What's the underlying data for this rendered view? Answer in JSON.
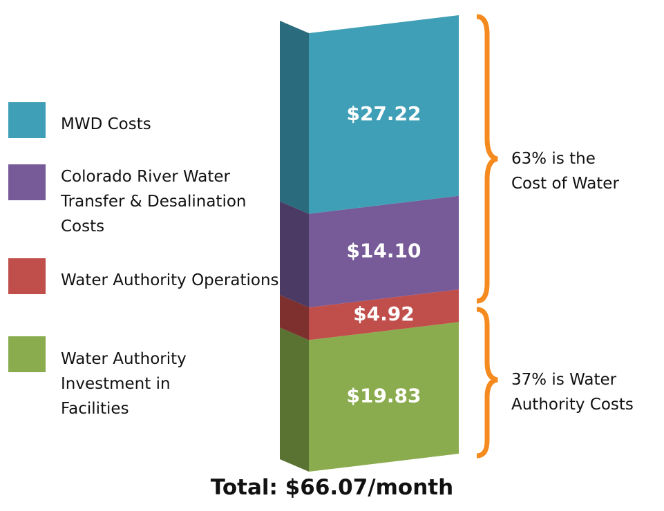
{
  "chart_data": {
    "type": "stacked-bar-3d",
    "title": "Total: $66.07/month",
    "series": [
      {
        "name": "MWD Costs",
        "color": "#3f9fb6",
        "side_color": "#2a6b7d",
        "values": [
          27.22
        ],
        "value_labels": [
          "$27.22"
        ]
      },
      {
        "name": "Colorado River Water Transfer & Desalination Costs",
        "color": "#765b98",
        "side_color": "#4b3a63",
        "values": [
          14.1
        ],
        "value_labels": [
          "$14.10"
        ]
      },
      {
        "name": "Water Authority Operations",
        "color": "#c04f4c",
        "side_color": "#7d302e",
        "values": [
          4.92
        ],
        "value_labels": [
          "$4.92"
        ]
      },
      {
        "name": "Water Authority Investment in Facilities",
        "color": "#8bac4e",
        "side_color": "#5a7232",
        "values": [
          19.83
        ],
        "value_labels": [
          "$19.83"
        ]
      }
    ],
    "annotations": [
      "63% is the Cost of Water",
      "37% is Water Authority Costs"
    ],
    "brace_color": "#f58a1f"
  }
}
